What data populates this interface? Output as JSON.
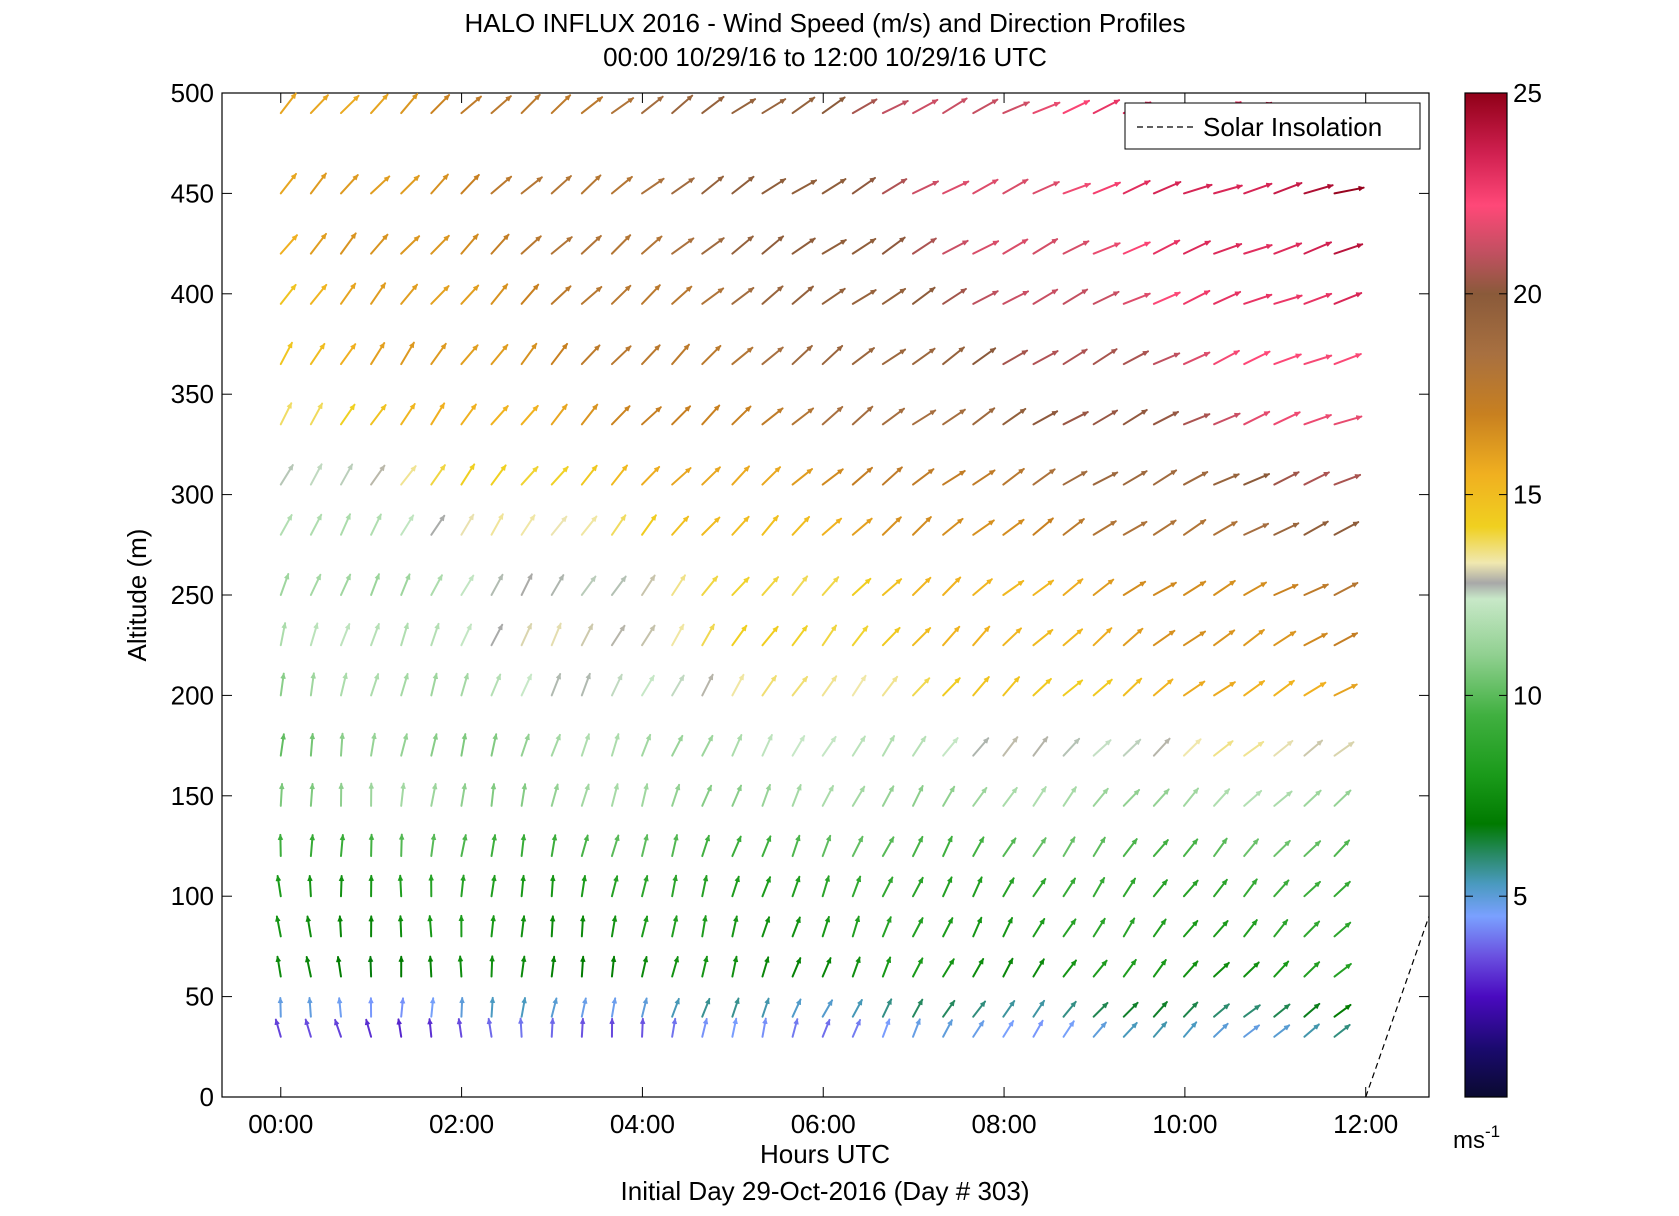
{
  "chart_data": {
    "type": "quiver",
    "title": "HALO INFLUX 2016 - Wind Speed (m/s) and Direction Profiles",
    "subtitle": "00:00 10/29/16 to 12:00 10/29/16  UTC",
    "xlabel": "Hours UTC",
    "ylabel": "Altitude (m)",
    "caption": "Initial Day 29-Oct-2016 (Day # 303)",
    "x_range_hours": [
      -0.65,
      12.7
    ],
    "y_range_m": [
      0,
      500
    ],
    "x_ticks": [
      0,
      2,
      4,
      6,
      8,
      10,
      12
    ],
    "x_tick_labels": [
      "00:00",
      "02:00",
      "04:00",
      "06:00",
      "08:00",
      "10:00",
      "12:00"
    ],
    "y_ticks": [
      0,
      50,
      100,
      150,
      200,
      250,
      300,
      350,
      400,
      450,
      500
    ],
    "y_tick_labels": [
      "0",
      "50",
      "100",
      "150",
      "200",
      "250",
      "300",
      "350",
      "400",
      "450",
      "500"
    ],
    "legend": {
      "label": "Solar Insolation",
      "position": "top-right",
      "style": "dashed"
    },
    "colorbar": {
      "range": [
        0,
        25
      ],
      "ticks": [
        5,
        10,
        15,
        20,
        25
      ],
      "tick_labels": [
        "5",
        "10",
        "15",
        "20",
        "25"
      ],
      "unit_base": "ms",
      "unit_exp": "-1"
    },
    "solar_insolation": {
      "x": [
        12.0,
        12.7
      ],
      "y": [
        0,
        90
      ]
    },
    "altitudes_m": [
      30,
      40,
      60,
      80,
      100,
      120,
      145,
      170,
      200,
      225,
      250,
      280,
      305,
      335,
      365,
      395,
      420,
      450,
      490
    ],
    "time_start_hours": 0,
    "time_step_hours": 0.333,
    "time_count": 36,
    "profiles": [
      {
        "alt": 30,
        "dir_start": -20,
        "dir_end": 55,
        "spd_start": 3.0,
        "spd_end": 5.5
      },
      {
        "alt": 40,
        "dir_start": -5,
        "dir_end": 55,
        "spd_start": 4.5,
        "spd_end": 6.5
      },
      {
        "alt": 60,
        "dir_start": -10,
        "dir_end": 50,
        "spd_start": 7.0,
        "spd_end": 8.0
      },
      {
        "alt": 80,
        "dir_start": -8,
        "dir_end": 45,
        "spd_start": 7.5,
        "spd_end": 8.5
      },
      {
        "alt": 100,
        "dir_start": -5,
        "dir_end": 45,
        "spd_start": 8.0,
        "spd_end": 9.0
      },
      {
        "alt": 120,
        "dir_start": 0,
        "dir_end": 45,
        "spd_start": 9.5,
        "spd_end": 10.0
      },
      {
        "alt": 145,
        "dir_start": 0,
        "dir_end": 50,
        "spd_start": 11.0,
        "spd_end": 11.5
      },
      {
        "alt": 170,
        "dir_start": 5,
        "dir_end": 55,
        "spd_start": 10.5,
        "spd_end": 13.5
      },
      {
        "alt": 200,
        "dir_start": 10,
        "dir_end": 60,
        "spd_start": 11.0,
        "spd_end": 16.0
      },
      {
        "alt": 225,
        "dir_start": 15,
        "dir_end": 60,
        "spd_start": 11.5,
        "spd_end": 17.0
      },
      {
        "alt": 250,
        "dir_start": 20,
        "dir_end": 65,
        "spd_start": 11.0,
        "spd_end": 17.5
      },
      {
        "alt": 280,
        "dir_start": 25,
        "dir_end": 65,
        "spd_start": 11.5,
        "spd_end": 19.5
      },
      {
        "alt": 305,
        "dir_start": 30,
        "dir_end": 68,
        "spd_start": 12.5,
        "spd_end": 20.5
      },
      {
        "alt": 335,
        "dir_start": 30,
        "dir_end": 70,
        "spd_start": 14.0,
        "spd_end": 22.0
      },
      {
        "alt": 365,
        "dir_start": 30,
        "dir_end": 70,
        "spd_start": 15.0,
        "spd_end": 22.5
      },
      {
        "alt": 395,
        "dir_start": 35,
        "dir_end": 72,
        "spd_start": 15.0,
        "spd_end": 23.5
      },
      {
        "alt": 420,
        "dir_start": 38,
        "dir_end": 72,
        "spd_start": 15.5,
        "spd_end": 24.0
      },
      {
        "alt": 450,
        "dir_start": 40,
        "dir_end": 75,
        "spd_start": 15.5,
        "spd_end": 24.5
      },
      {
        "alt": 490,
        "dir_start": 40,
        "dir_end": 75,
        "spd_start": 15.5,
        "spd_end": 24.5
      }
    ]
  }
}
